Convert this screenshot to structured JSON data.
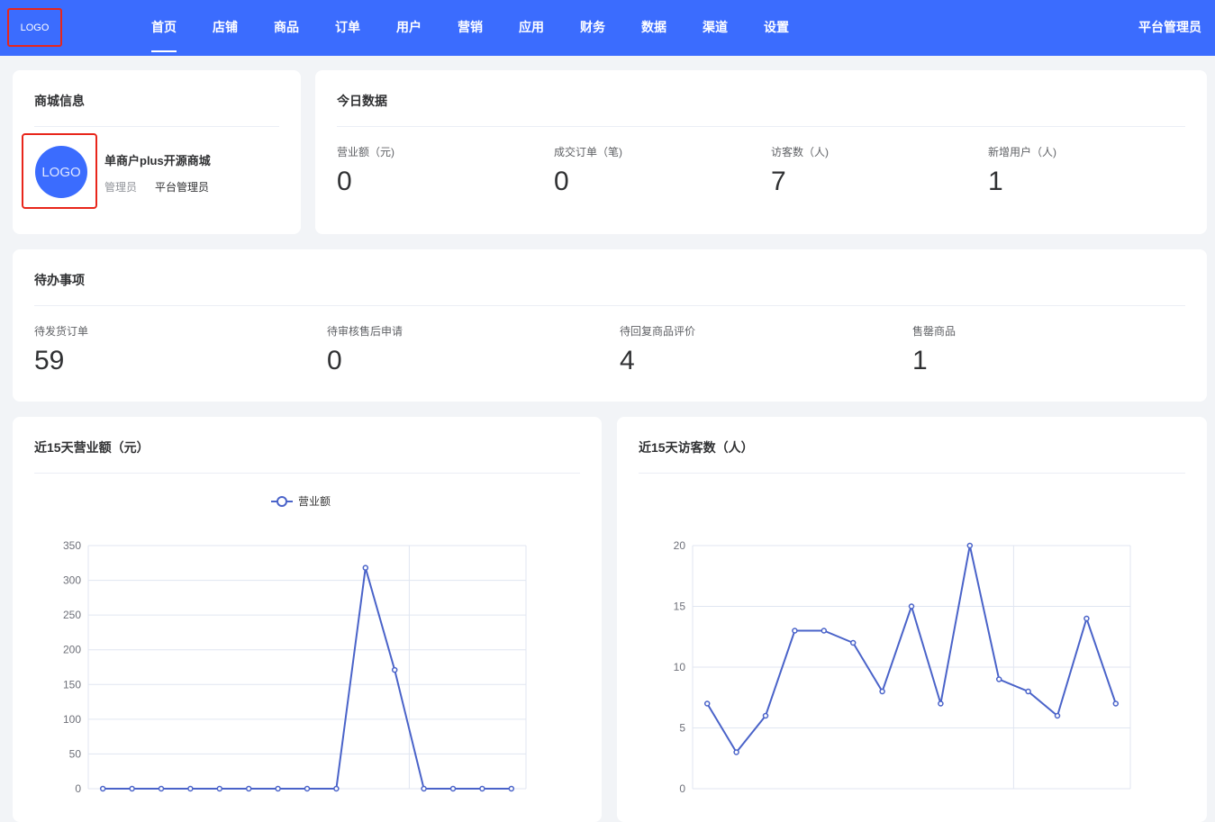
{
  "header": {
    "logo": "LOGO",
    "nav": [
      "首页",
      "店铺",
      "商品",
      "订单",
      "用户",
      "营销",
      "应用",
      "财务",
      "数据",
      "渠道",
      "设置"
    ],
    "active": "首页",
    "user": "平台管理员",
    "color": "#3b6cfe"
  },
  "shop": {
    "title": "商城信息",
    "logo": "LOGO",
    "name": "单商户plus开源商城",
    "role_label": "管理员",
    "role_value": "平台管理员"
  },
  "today": {
    "title": "今日数据",
    "stats": [
      {
        "label": "营业额（元)",
        "value": "0"
      },
      {
        "label": "成交订单（笔)",
        "value": "0"
      },
      {
        "label": "访客数（人)",
        "value": "7"
      },
      {
        "label": "新增用户（人)",
        "value": "1"
      }
    ]
  },
  "todo": {
    "title": "待办事项",
    "stats": [
      {
        "label": "待发货订单",
        "value": "59"
      },
      {
        "label": "待审核售后申请",
        "value": "0"
      },
      {
        "label": "待回复商品评价",
        "value": "4"
      },
      {
        "label": "售罄商品",
        "value": "1"
      }
    ]
  },
  "chart_data": [
    {
      "type": "line",
      "title": "近15天营业额（元）",
      "legend": [
        "营业额"
      ],
      "legend_position": "top-center",
      "ylim": [
        0,
        350
      ],
      "yticks": [
        0,
        50,
        100,
        150,
        200,
        250,
        300,
        350
      ],
      "grid": true,
      "color": "#4a63c9",
      "series": [
        {
          "name": "营业额",
          "values": [
            0,
            0,
            0,
            0,
            0,
            0,
            0,
            0,
            0,
            318,
            171,
            0,
            0,
            0,
            0
          ]
        }
      ]
    },
    {
      "type": "line",
      "title": "近15天访客数（人）",
      "ylim": [
        0,
        20
      ],
      "yticks": [
        0,
        5,
        10,
        15,
        20
      ],
      "grid": true,
      "color": "#4a63c9",
      "series": [
        {
          "values": [
            7,
            3,
            6,
            13,
            13,
            12,
            8,
            15,
            7,
            20,
            9,
            8,
            6,
            14,
            7
          ]
        }
      ]
    }
  ]
}
